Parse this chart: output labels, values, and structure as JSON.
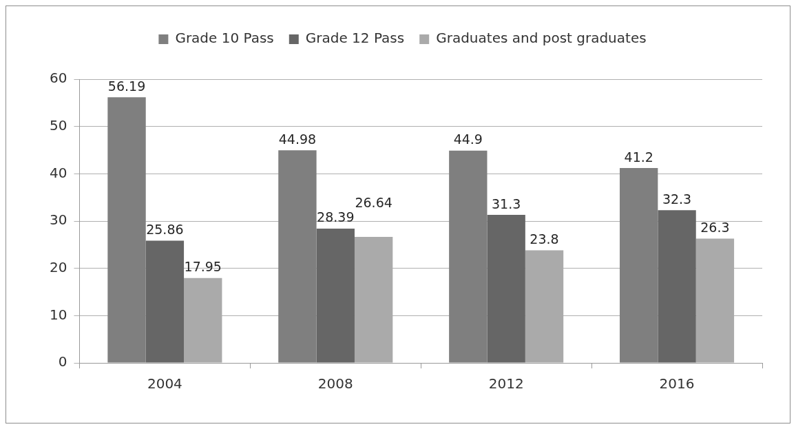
{
  "chart_data": {
    "type": "bar",
    "categories": [
      "2004",
      "2008",
      "2012",
      "2016"
    ],
    "series": [
      {
        "name": "Grade 10 Pass",
        "color": "#7f7f7f",
        "values": [
          56.19,
          44.98,
          44.9,
          41.2
        ]
      },
      {
        "name": "Grade 12 Pass",
        "color": "#666666",
        "values": [
          25.86,
          28.39,
          31.3,
          32.3
        ]
      },
      {
        "name": "Graduates and post graduates",
        "color": "#aaaaaa",
        "values": [
          17.95,
          26.64,
          23.8,
          26.3
        ]
      }
    ],
    "ylim": [
      0,
      60
    ],
    "yticks": [
      0,
      10,
      20,
      30,
      40,
      50,
      60
    ],
    "grid": "y",
    "legend": "top",
    "data_labels": true
  }
}
